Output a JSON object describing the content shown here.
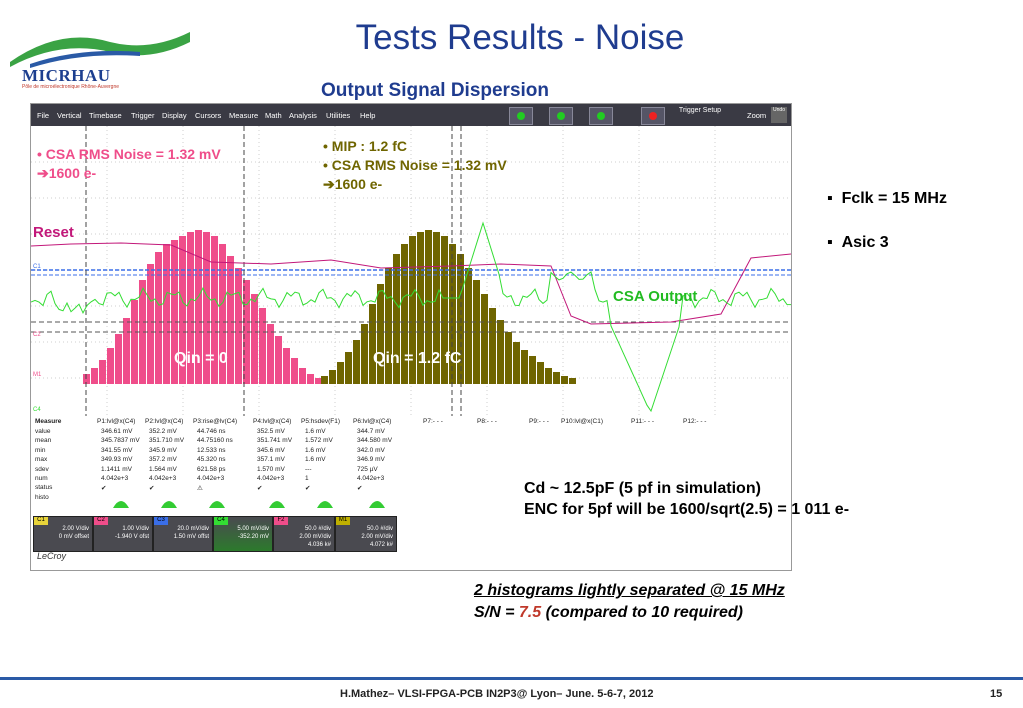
{
  "slide": {
    "title": "Tests Results - Noise",
    "subtitle": "Output Signal Dispersion",
    "logo_text": "MICRHAU",
    "logo_sub": "Pôle de microélectronique Rhône-Auvergne"
  },
  "scope_menu": [
    "File",
    "Vertical",
    "Timebase",
    "Trigger",
    "Display",
    "Cursors",
    "Measure",
    "Math",
    "Analysis",
    "Utilities",
    "Help"
  ],
  "scope_toolbar": {
    "trigger_setup": "Trigger Setup",
    "zoom": "Zoom",
    "undo": "Undo"
  },
  "annotations": {
    "left_noise": "• CSA RMS Noise = 1.32 mV",
    "left_electrons": "➔1600 e-",
    "mip": "• MIP : 1.2 fC",
    "right_noise": "• CSA RMS Noise = 1.32 mV",
    "right_electrons": "➔1600 e-",
    "reset": "Reset",
    "csa_output": "CSA Output",
    "qin0": "Qin = 0",
    "qin12": "Qin = 1.2 fC"
  },
  "colors": {
    "pink": "#ef4d8a",
    "olive": "#6f6500",
    "green": "#33dd33",
    "title_blue": "#1f3c8f",
    "reset_magenta": "#c2187a"
  },
  "histograms": {
    "qin0_counts": [
      5,
      8,
      12,
      18,
      25,
      33,
      42,
      52,
      60,
      66,
      70,
      72,
      74,
      76,
      77,
      76,
      74,
      70,
      64,
      58,
      52,
      45,
      38,
      30,
      24,
      18,
      13,
      8,
      5,
      3
    ],
    "qin12_counts": [
      4,
      7,
      11,
      16,
      22,
      30,
      40,
      50,
      58,
      65,
      70,
      74,
      76,
      77,
      76,
      74,
      70,
      65,
      58,
      52,
      45,
      38,
      32,
      26,
      21,
      17,
      14,
      11,
      8,
      6,
      4,
      3
    ]
  },
  "measure": {
    "headers": [
      "Measure",
      "P1:lvl@x(C4)",
      "P2:lvl@x(C4)",
      "P3:rise@lv(C4)",
      "P4:lvl@x(C4)",
      "P5:hsdev(F1)",
      "P6:lvl@x(C4)",
      "P7:- - -",
      "P8:- - -",
      "P9:- - -",
      "P10:lvl@x(C1)",
      "P11:- - -",
      "P12:- - -"
    ],
    "rows": [
      {
        "label": "value",
        "vals": [
          "346.61 mV",
          "352.2 mV",
          "44.746 ns",
          "352.5 mV",
          "1.6 mV",
          "344.7 mV"
        ]
      },
      {
        "label": "mean",
        "vals": [
          "345.7837 mV",
          "351.710 mV",
          "44.75160 ns",
          "351.741 mV",
          "1.572 mV",
          "344.580 mV"
        ]
      },
      {
        "label": "min",
        "vals": [
          "341.55 mV",
          "345.9 mV",
          "12.533 ns",
          "345.6 mV",
          "1.6 mV",
          "342.0 mV"
        ]
      },
      {
        "label": "max",
        "vals": [
          "349.93 mV",
          "357.2 mV",
          "45.320 ns",
          "357.1 mV",
          "1.6 mV",
          "346.9 mV"
        ]
      },
      {
        "label": "sdev",
        "vals": [
          "1.1411 mV",
          "1.564 mV",
          "621.58 ps",
          "1.570 mV",
          "---",
          "725 µV"
        ]
      },
      {
        "label": "num",
        "vals": [
          "4.042e+3",
          "4.042e+3",
          "4.042e+3",
          "4.042e+3",
          "1",
          "4.042e+3"
        ]
      },
      {
        "label": "status",
        "vals": [
          "✔",
          "✔",
          "⚠",
          "✔",
          "✔",
          "✔"
        ]
      },
      {
        "label": "histo",
        "vals": [
          "",
          "",
          "",
          "",
          "",
          ""
        ]
      }
    ]
  },
  "traces": [
    {
      "name": "C1",
      "line1": "2.00 V/div",
      "line2": "0 mV offset",
      "color": "#e8d43a"
    },
    {
      "name": "C2",
      "line1": "1.00 V/div",
      "line2": "-1.940 V ofst",
      "color": "#ef4d8a"
    },
    {
      "name": "C3",
      "line1": "20.0 mV/div",
      "line2": "1.50 mV offst",
      "color": "#3a6ee8"
    },
    {
      "name": "C4",
      "line1": "5.00 mV/div",
      "line2": "-352.20 mV",
      "color": "#33dd33"
    },
    {
      "name": "F2",
      "line1": "50.0 #/div",
      "line2": "2.00 mV/div",
      "line3": "4.036 k#",
      "color": "#ef4d8a"
    },
    {
      "name": "M1",
      "line1": "50.0 #/div",
      "line2": "2.00 mV/div",
      "line3": "4.072 k#",
      "color": "#bfb000"
    }
  ],
  "scope_brand": "LeCroy",
  "bullets": [
    "Fclk = 15 MHz",
    "Asic  3"
  ],
  "cd_line1": "Cd ~ 12.5pF (5 pf in simulation)",
  "cd_line2": "ENC for 5pf will be 1600/sqrt(2.5)  = 1 011 e-",
  "conclusion": {
    "line1": "2 histograms lightly separated @ 15 MHz",
    "sn_prefix": "S/N = ",
    "sn_value": "7.5",
    "sn_suffix": " (compared to 10 required)"
  },
  "footer": "H.Mathez– VLSI-FPGA-PCB  IN2P3@ Lyon– June. 5-6-7, 2012",
  "page_number": "15"
}
